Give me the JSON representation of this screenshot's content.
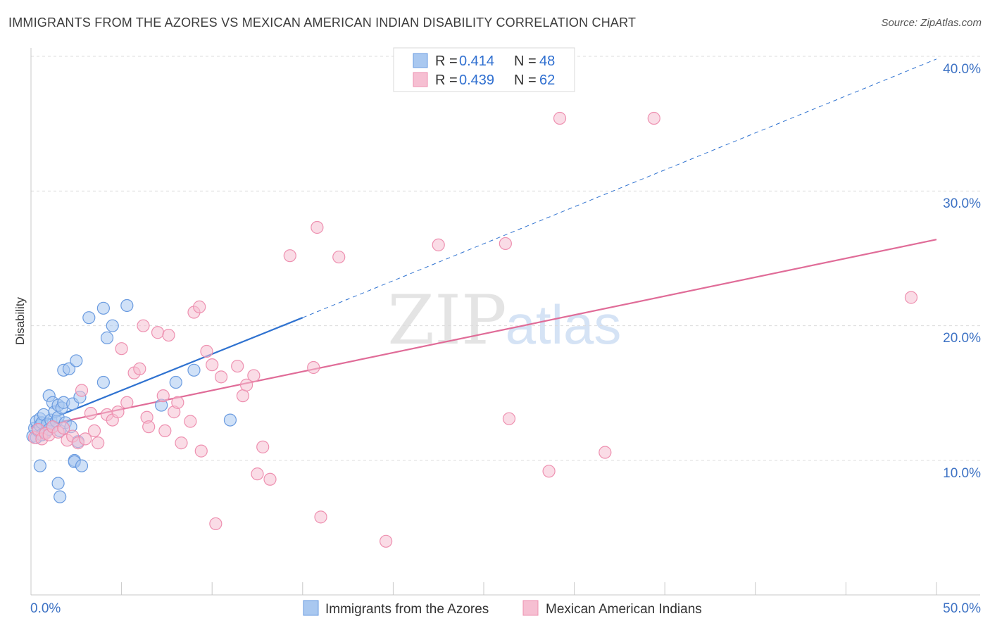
{
  "title": "IMMIGRANTS FROM THE AZORES VS MEXICAN AMERICAN INDIAN DISABILITY CORRELATION CHART",
  "source": "Source: ZipAtlas.com",
  "watermark": {
    "zip": "ZIP",
    "atlas": "atlas"
  },
  "colors": {
    "blue_fill": "#a9c8f0",
    "blue_stroke": "#6a9be0",
    "blue_line": "#2f72d0",
    "pink_fill": "#f6bfd2",
    "pink_stroke": "#ee90b0",
    "pink_line": "#e06c98",
    "tick_text": "#3d72c4"
  },
  "legend": {
    "r_label": "R =",
    "n_label": "N =",
    "series": [
      {
        "r": "0.414",
        "n": "48"
      },
      {
        "r": "0.439",
        "n": "62"
      }
    ]
  },
  "chart_data": {
    "type": "scatter",
    "title": "IMMIGRANTS FROM THE AZORES VS MEXICAN AMERICAN INDIAN DISABILITY CORRELATION CHART",
    "xlabel": "",
    "ylabel": "Disability",
    "xlim": [
      0,
      50
    ],
    "ylim": [
      0,
      42
    ],
    "x_tick_labels": [
      "0.0%",
      "50.0%"
    ],
    "y_ticks": [
      10,
      20,
      30,
      40
    ],
    "y_tick_labels": [
      "10.0%",
      "20.0%",
      "30.0%",
      "40.0%"
    ],
    "grid": true,
    "legend_position": "top-center",
    "series": [
      {
        "name": "Immigrants from the Azores",
        "r": 0.414,
        "n": 48,
        "points": [
          [
            0.1,
            11.8
          ],
          [
            0.2,
            12.4
          ],
          [
            0.3,
            12.9
          ],
          [
            0.3,
            11.7
          ],
          [
            0.4,
            12.2
          ],
          [
            0.5,
            13.1
          ],
          [
            0.5,
            12.6
          ],
          [
            0.6,
            11.9
          ],
          [
            0.6,
            12.8
          ],
          [
            0.7,
            13.4
          ],
          [
            0.8,
            12.1
          ],
          [
            0.9,
            12.7
          ],
          [
            1.0,
            14.8
          ],
          [
            1.0,
            12.3
          ],
          [
            1.1,
            13.0
          ],
          [
            1.2,
            14.3
          ],
          [
            1.2,
            12.5
          ],
          [
            1.3,
            13.6
          ],
          [
            1.4,
            12.9
          ],
          [
            1.5,
            14.1
          ],
          [
            1.5,
            13.2
          ],
          [
            1.6,
            12.2
          ],
          [
            1.7,
            13.9
          ],
          [
            1.8,
            16.7
          ],
          [
            1.8,
            14.3
          ],
          [
            1.9,
            12.8
          ],
          [
            2.1,
            16.8
          ],
          [
            2.2,
            12.5
          ],
          [
            2.3,
            14.2
          ],
          [
            2.4,
            10.0
          ],
          [
            2.4,
            9.9
          ],
          [
            2.5,
            17.4
          ],
          [
            2.6,
            11.4
          ],
          [
            2.7,
            14.7
          ],
          [
            2.8,
            9.6
          ],
          [
            3.2,
            20.6
          ],
          [
            4.0,
            15.8
          ],
          [
            4.0,
            21.3
          ],
          [
            4.2,
            19.1
          ],
          [
            4.5,
            20.0
          ],
          [
            5.3,
            21.5
          ],
          [
            7.2,
            14.1
          ],
          [
            8.0,
            15.8
          ],
          [
            9.0,
            16.7
          ],
          [
            11.0,
            13.0
          ],
          [
            1.5,
            8.3
          ],
          [
            1.6,
            7.3
          ],
          [
            0.5,
            9.6
          ]
        ],
        "trend": {
          "x1": 0,
          "y1": 12.5,
          "x2": 15,
          "y2": 20.6,
          "dash_to_x": 50,
          "dash_to_y": 39.8
        }
      },
      {
        "name": "Mexican American Indians",
        "r": 0.439,
        "n": 62,
        "points": [
          [
            0.2,
            11.7
          ],
          [
            0.4,
            12.3
          ],
          [
            0.6,
            11.6
          ],
          [
            0.8,
            12.0
          ],
          [
            1.0,
            11.9
          ],
          [
            1.2,
            12.5
          ],
          [
            1.5,
            12.1
          ],
          [
            1.8,
            12.4
          ],
          [
            2.0,
            11.5
          ],
          [
            2.3,
            11.8
          ],
          [
            2.6,
            11.3
          ],
          [
            2.8,
            15.2
          ],
          [
            3.0,
            11.6
          ],
          [
            3.3,
            13.5
          ],
          [
            3.5,
            12.2
          ],
          [
            3.7,
            11.3
          ],
          [
            4.2,
            13.4
          ],
          [
            4.5,
            13.0
          ],
          [
            4.8,
            13.6
          ],
          [
            5.0,
            18.3
          ],
          [
            5.3,
            14.3
          ],
          [
            5.7,
            16.5
          ],
          [
            6.0,
            16.8
          ],
          [
            6.2,
            20.0
          ],
          [
            6.4,
            13.2
          ],
          [
            6.5,
            12.5
          ],
          [
            7.0,
            19.5
          ],
          [
            7.3,
            14.8
          ],
          [
            7.4,
            12.2
          ],
          [
            7.6,
            19.3
          ],
          [
            7.9,
            13.6
          ],
          [
            8.1,
            14.3
          ],
          [
            8.3,
            11.3
          ],
          [
            8.8,
            12.9
          ],
          [
            9.0,
            21.0
          ],
          [
            9.3,
            21.4
          ],
          [
            9.4,
            10.7
          ],
          [
            9.7,
            18.1
          ],
          [
            10.0,
            17.1
          ],
          [
            10.2,
            5.3
          ],
          [
            10.5,
            16.2
          ],
          [
            11.4,
            17.0
          ],
          [
            11.7,
            14.8
          ],
          [
            11.9,
            15.6
          ],
          [
            12.3,
            16.3
          ],
          [
            12.5,
            9.0
          ],
          [
            12.8,
            11.0
          ],
          [
            13.2,
            8.6
          ],
          [
            14.3,
            25.2
          ],
          [
            15.6,
            16.9
          ],
          [
            15.8,
            27.3
          ],
          [
            16.0,
            5.8
          ],
          [
            17.0,
            25.1
          ],
          [
            19.6,
            4.0
          ],
          [
            22.5,
            26.0
          ],
          [
            26.2,
            26.1
          ],
          [
            26.4,
            13.1
          ],
          [
            28.6,
            9.2
          ],
          [
            29.2,
            35.4
          ],
          [
            31.7,
            10.6
          ],
          [
            34.4,
            35.4
          ],
          [
            48.6,
            22.1
          ]
        ],
        "trend": {
          "x1": 0,
          "y1": 12.4,
          "x2": 50,
          "y2": 26.4
        }
      }
    ]
  }
}
